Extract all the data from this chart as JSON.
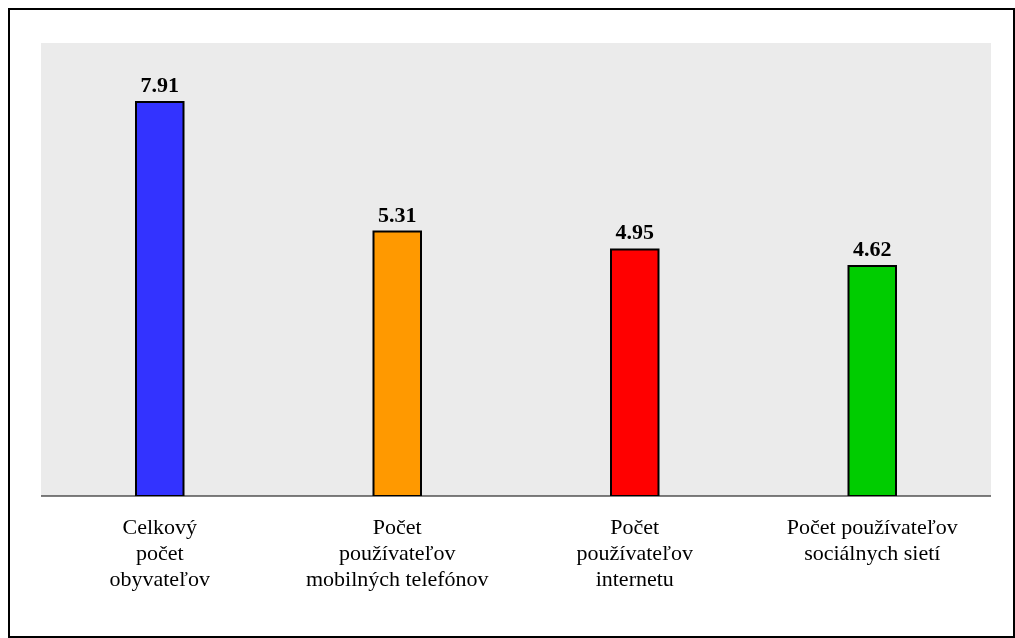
{
  "chart_data": {
    "type": "bar",
    "categories": [
      "Celkový\npočet\nobyvateľov",
      "Počet\npoužívateľov\nmobilných telefónov",
      "Počet\npoužívateľov\ninternetu",
      "Počet používateľov\nsociálnych sietí"
    ],
    "values": [
      7.91,
      5.31,
      4.95,
      4.62
    ],
    "colors": [
      "#3333ff",
      "#ff9900",
      "#ff0000",
      "#00cc00"
    ],
    "data_labels": true,
    "grid": false
  }
}
